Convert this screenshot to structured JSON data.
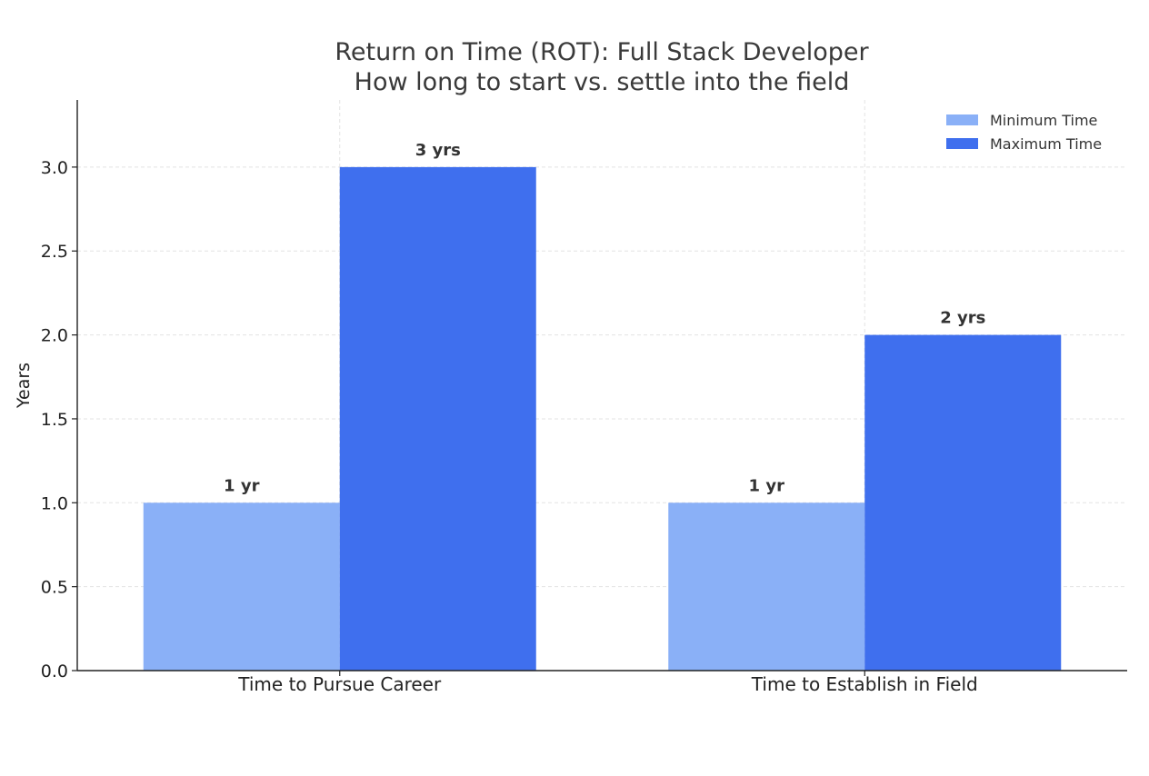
{
  "colors": {
    "min_series": "#8ab0f7",
    "max_series": "#3f6fee",
    "grid": "#e3e3e3",
    "axis": "#222222"
  },
  "chart_data": {
    "type": "bar",
    "title": "Return on Time (ROT): Full Stack Developer",
    "subtitle": "How long to start vs. settle into the field",
    "xlabel": "",
    "ylabel": "Years",
    "categories": [
      "Time to Pursue Career",
      "Time to Establish in Field"
    ],
    "series": [
      {
        "name": "Minimum Time",
        "values": [
          1,
          1
        ],
        "labels": [
          "1 yr",
          "1 yr"
        ],
        "color": "#8ab0f7"
      },
      {
        "name": "Maximum Time",
        "values": [
          3,
          2
        ],
        "labels": [
          "3 yrs",
          "2 yrs"
        ],
        "color": "#3f6fee"
      }
    ],
    "ylim": [
      0,
      3.4
    ],
    "yticks": [
      "0.0",
      "0.5",
      "1.0",
      "1.5",
      "2.0",
      "2.5",
      "3.0"
    ],
    "grid": true,
    "legend": "top-right"
  }
}
